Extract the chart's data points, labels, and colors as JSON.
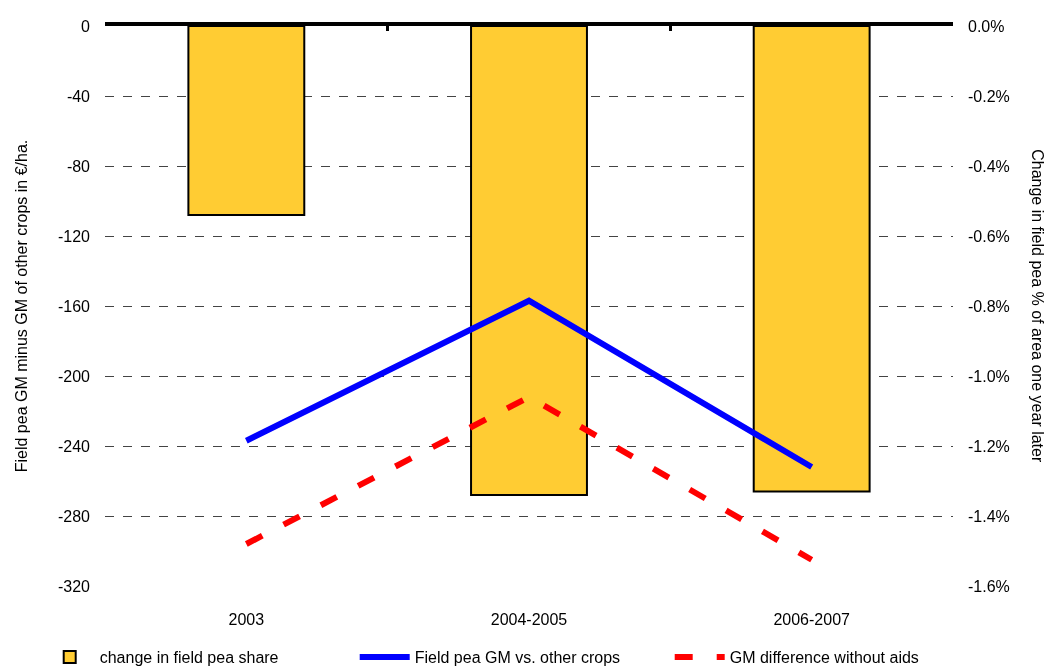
{
  "chart_data": {
    "type": "bar",
    "ylabel": "Field pea GM minus GM of other crops in €/ha.",
    "y2label": "Change in field pea % of area one year later",
    "categories": [
      "2003",
      "2004-2005",
      "2006-2007"
    ],
    "series": [
      {
        "name": "change in field pea share",
        "axis": "y2",
        "color": "#ffcc33",
        "values": [
          -0.54,
          -1.34,
          -1.33
        ]
      },
      {
        "name": "Field pea GM vs. other crops",
        "type": "line",
        "color": "#0000ff",
        "line_style": "solid",
        "values": [
          -237,
          -157,
          -252
        ]
      },
      {
        "name": "GM difference without aids",
        "type": "line",
        "color": "#ff0000",
        "line_style": "dashed",
        "values": [
          -296,
          -212,
          -305
        ]
      }
    ],
    "ylim": [
      -320,
      0
    ],
    "yticks": [
      0,
      -40,
      -80,
      -120,
      -160,
      -200,
      -240,
      -280,
      -320
    ],
    "y2lim": [
      -1.6,
      0
    ],
    "y2ticks": [
      {
        "value": 0,
        "label": "0.0%"
      },
      {
        "value": -0.2,
        "label": "-0.2%"
      },
      {
        "value": -0.4,
        "label": "-0.4%"
      },
      {
        "value": -0.6,
        "label": "-0.6%"
      },
      {
        "value": -0.8,
        "label": "-0.8%"
      },
      {
        "value": -1.0,
        "label": "-1.0%"
      },
      {
        "value": -1.2,
        "label": "-1.2%"
      },
      {
        "value": -1.4,
        "label": "-1.4%"
      },
      {
        "value": -1.6,
        "label": "-1.6%"
      }
    ],
    "grid": "y",
    "legend": "bottom",
    "marker": "none"
  }
}
